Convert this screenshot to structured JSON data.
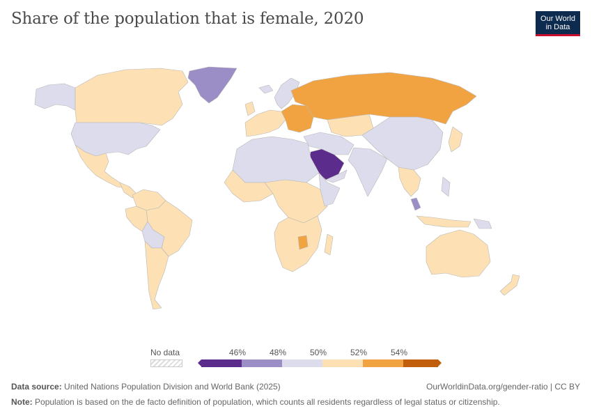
{
  "title": "Share of the population that is female, 2020",
  "logo": {
    "line1": "Our World",
    "line2": "in Data"
  },
  "legend": {
    "no_data_label": "No data",
    "ticks": [
      "46%",
      "48%",
      "50%",
      "52%",
      "54%"
    ],
    "bins": [
      {
        "color": "#5b2c8c"
      },
      {
        "color": "#9b8ec6"
      },
      {
        "color": "#dcdcec"
      },
      {
        "color": "#fde0b4"
      },
      {
        "color": "#f2a341"
      },
      {
        "color": "#c05e0b"
      }
    ]
  },
  "map_colors": {
    "land_below_46": "#5b2c8c",
    "land_46_48": "#9b8ec6",
    "land_48_50": "#dcdcec",
    "land_50_52": "#fde0b4",
    "land_52_54": "#f2a341",
    "border": "#b8b8b8"
  },
  "footer": {
    "source_label": "Data source:",
    "source_text": "United Nations Population Division and World Bank (2025)",
    "note_label": "Note:",
    "note_text": "Population is based on the de facto definition of population, which counts all residents regardless of legal status or citizenship.",
    "url": "OurWorldinData.org/gender-ratio | CC BY"
  }
}
